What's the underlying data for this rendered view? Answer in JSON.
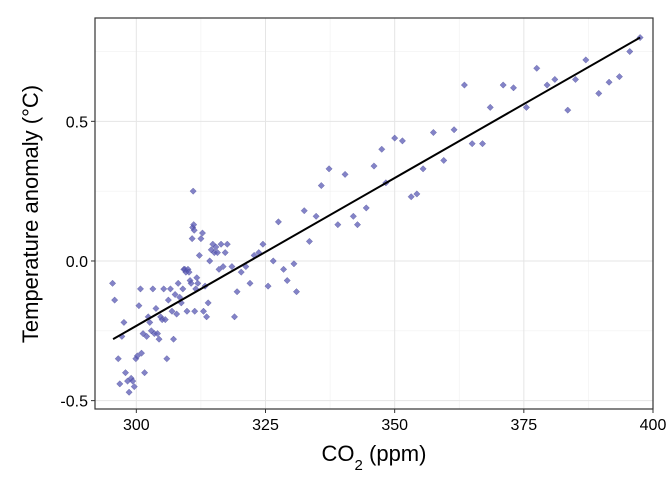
{
  "chart_data": {
    "type": "scatter",
    "xlabel": "CO2 (ppm)",
    "xlabel_parts": {
      "base": "CO",
      "subscript": "2",
      "rest": " (ppm)"
    },
    "ylabel": "Temperature anomaly (°C)",
    "xlim": [
      292,
      400
    ],
    "ylim": [
      -0.53,
      0.87
    ],
    "x_ticks": [
      300,
      325,
      350,
      375,
      400
    ],
    "x_tick_labels": [
      "300",
      "325",
      "350",
      "375",
      "400"
    ],
    "y_ticks": [
      -0.5,
      0.0,
      0.5
    ],
    "y_tick_labels": [
      "-0.5",
      "0.0",
      "0.5"
    ],
    "grid": true,
    "legend": "none",
    "point_color": "#5a5ab4",
    "trend_line": {
      "x": [
        295.5,
        397.5
      ],
      "y": [
        -0.28,
        0.8
      ]
    },
    "points": [
      [
        295.4,
        -0.08
      ],
      [
        295.8,
        -0.14
      ],
      [
        296.5,
        -0.35
      ],
      [
        296.8,
        -0.44
      ],
      [
        297.2,
        -0.27
      ],
      [
        297.6,
        -0.22
      ],
      [
        297.9,
        -0.4
      ],
      [
        298.3,
        -0.43
      ],
      [
        298.6,
        -0.47
      ],
      [
        299.0,
        -0.42
      ],
      [
        299.3,
        -0.43
      ],
      [
        299.6,
        -0.45
      ],
      [
        299.9,
        -0.35
      ],
      [
        300.2,
        -0.34
      ],
      [
        300.5,
        -0.16
      ],
      [
        300.8,
        -0.1
      ],
      [
        301.0,
        -0.33
      ],
      [
        301.3,
        -0.26
      ],
      [
        301.6,
        -0.4
      ],
      [
        302.0,
        -0.27
      ],
      [
        302.3,
        -0.2
      ],
      [
        302.6,
        -0.22
      ],
      [
        302.9,
        -0.25
      ],
      [
        303.2,
        -0.1
      ],
      [
        303.5,
        -0.26
      ],
      [
        303.8,
        -0.17
      ],
      [
        304.1,
        -0.26
      ],
      [
        304.4,
        -0.28
      ],
      [
        304.7,
        -0.2
      ],
      [
        305.0,
        -0.21
      ],
      [
        305.3,
        -0.1
      ],
      [
        305.6,
        -0.21
      ],
      [
        305.9,
        -0.35
      ],
      [
        306.2,
        -0.14
      ],
      [
        306.6,
        -0.1
      ],
      [
        306.9,
        -0.18
      ],
      [
        307.2,
        -0.28
      ],
      [
        307.5,
        -0.12
      ],
      [
        307.8,
        -0.19
      ],
      [
        308.1,
        -0.08
      ],
      [
        308.4,
        -0.13
      ],
      [
        308.7,
        -0.15
      ],
      [
        309.0,
        -0.1
      ],
      [
        309.2,
        -0.03
      ],
      [
        309.4,
        -0.03
      ],
      [
        309.6,
        -0.04
      ],
      [
        309.8,
        -0.18
      ],
      [
        310.0,
        -0.03
      ],
      [
        310.2,
        -0.04
      ],
      [
        310.4,
        -0.07
      ],
      [
        310.6,
        -0.08
      ],
      [
        310.8,
        0.08
      ],
      [
        310.9,
        0.12
      ],
      [
        311.0,
        0.25
      ],
      [
        311.1,
        0.13
      ],
      [
        311.2,
        0.11
      ],
      [
        311.3,
        -0.18
      ],
      [
        311.5,
        -0.1
      ],
      [
        311.7,
        -0.06
      ],
      [
        311.9,
        -0.08
      ],
      [
        312.2,
        0.02
      ],
      [
        312.5,
        0.08
      ],
      [
        312.8,
        0.1
      ],
      [
        313.0,
        -0.18
      ],
      [
        313.3,
        -0.09
      ],
      [
        313.6,
        -0.2
      ],
      [
        313.9,
        -0.15
      ],
      [
        314.2,
        0.0
      ],
      [
        314.5,
        0.04
      ],
      [
        314.8,
        0.06
      ],
      [
        315.1,
        0.03
      ],
      [
        315.4,
        0.05
      ],
      [
        315.7,
        0.03
      ],
      [
        316.0,
        -0.03
      ],
      [
        316.4,
        0.06
      ],
      [
        316.8,
        -0.02
      ],
      [
        317.2,
        0.03
      ],
      [
        317.6,
        0.06
      ],
      [
        318.5,
        -0.02
      ],
      [
        319.0,
        -0.2
      ],
      [
        319.5,
        -0.11
      ],
      [
        320.3,
        -0.04
      ],
      [
        321.2,
        -0.02
      ],
      [
        322.0,
        -0.08
      ],
      [
        322.8,
        0.02
      ],
      [
        323.7,
        0.03
      ],
      [
        324.5,
        0.06
      ],
      [
        325.5,
        -0.09
      ],
      [
        326.5,
        0.0
      ],
      [
        327.5,
        0.14
      ],
      [
        328.5,
        -0.03
      ],
      [
        329.2,
        -0.07
      ],
      [
        330.5,
        -0.01
      ],
      [
        331.0,
        -0.11
      ],
      [
        332.5,
        0.18
      ],
      [
        333.5,
        0.07
      ],
      [
        334.8,
        0.16
      ],
      [
        335.8,
        0.27
      ],
      [
        337.3,
        0.33
      ],
      [
        339.0,
        0.13
      ],
      [
        340.4,
        0.31
      ],
      [
        342.0,
        0.16
      ],
      [
        342.8,
        0.13
      ],
      [
        344.5,
        0.19
      ],
      [
        346.0,
        0.34
      ],
      [
        347.5,
        0.4
      ],
      [
        348.3,
        0.28
      ],
      [
        350.0,
        0.44
      ],
      [
        351.5,
        0.43
      ],
      [
        353.2,
        0.23
      ],
      [
        354.3,
        0.24
      ],
      [
        355.5,
        0.33
      ],
      [
        357.5,
        0.46
      ],
      [
        359.5,
        0.36
      ],
      [
        361.5,
        0.47
      ],
      [
        363.5,
        0.63
      ],
      [
        365.0,
        0.42
      ],
      [
        367.0,
        0.42
      ],
      [
        368.5,
        0.55
      ],
      [
        371.0,
        0.63
      ],
      [
        373.0,
        0.62
      ],
      [
        375.5,
        0.55
      ],
      [
        377.5,
        0.69
      ],
      [
        379.5,
        0.63
      ],
      [
        381.0,
        0.65
      ],
      [
        383.5,
        0.54
      ],
      [
        385.0,
        0.65
      ],
      [
        387.0,
        0.72
      ],
      [
        389.5,
        0.6
      ],
      [
        391.5,
        0.64
      ],
      [
        393.5,
        0.66
      ],
      [
        395.5,
        0.75
      ],
      [
        397.5,
        0.8
      ]
    ]
  }
}
